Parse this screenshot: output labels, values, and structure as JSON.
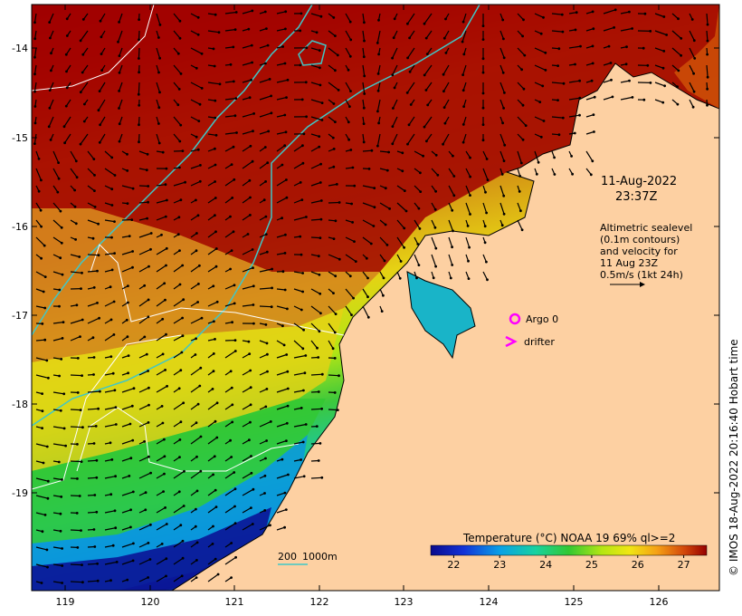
{
  "map": {
    "lon_ticks": [
      "119",
      "120",
      "121",
      "122",
      "123",
      "124",
      "125",
      "126"
    ],
    "lat_ticks": [
      "-14",
      "-15",
      "-16",
      "-17",
      "-18",
      "-19"
    ],
    "date_line1": "11-Aug-2022",
    "date_line2": "23:37Z",
    "altimetry_lines": [
      "Altimetric sealevel",
      "(0.1m contours)",
      "and velocity for",
      "11 Aug 23Z",
      "0.5m/s (1kt 24h)"
    ],
    "legend": {
      "argo": "Argo 0",
      "drifter": "drifter"
    },
    "colorbar": {
      "title": "Temperature (°C) NOAA 19 69% ql>=2",
      "ticks": [
        "22",
        "23",
        "24",
        "25",
        "26",
        "27"
      ],
      "min": 21.5,
      "max": 27.5
    },
    "depth_labels": {
      "d200": "200",
      "d1000": "1000m"
    },
    "credit": "© IMOS 18-Aug-2022 20:16:40 Hobart time",
    "colors": {
      "land": "#fdd0a2",
      "contour_200": "#3fc7c7",
      "argo": "#ff00ff",
      "drifter": "#ff00ff"
    }
  }
}
